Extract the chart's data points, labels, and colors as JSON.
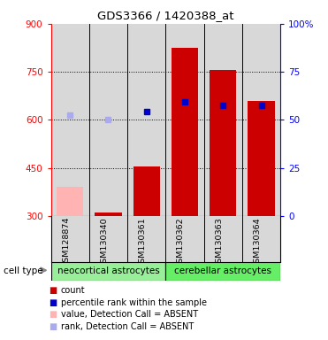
{
  "title": "GDS3366 / 1420388_at",
  "samples": [
    "GSM128874",
    "GSM130340",
    "GSM130361",
    "GSM130362",
    "GSM130363",
    "GSM130364"
  ],
  "bar_values": [
    390,
    310,
    455,
    825,
    755,
    660
  ],
  "bar_colors": [
    "#ffb3b3",
    "#cc0000",
    "#cc0000",
    "#cc0000",
    "#cc0000",
    "#cc0000"
  ],
  "dot_values": [
    615,
    600,
    625,
    655,
    645,
    645
  ],
  "dot_colors": [
    "#aaaaee",
    "#aaaaee",
    "#0000cc",
    "#0000cc",
    "#0000cc",
    "#0000cc"
  ],
  "ylim_left": [
    300,
    900
  ],
  "ylim_right": [
    0,
    100
  ],
  "yticks_left": [
    300,
    450,
    600,
    750,
    900
  ],
  "yticks_right": [
    0,
    25,
    50,
    75,
    100
  ],
  "ytick_labels_left": [
    "300",
    "450",
    "600",
    "750",
    "900"
  ],
  "ytick_labels_right": [
    "0",
    "25",
    "50",
    "75",
    "100%"
  ],
  "hgrid_ticks": [
    450,
    600,
    750
  ],
  "cell_type_groups": [
    {
      "label": "neocortical astrocytes",
      "color": "#99ee99",
      "start": 0,
      "end": 3
    },
    {
      "label": "cerebellar astrocytes",
      "color": "#66ee66",
      "start": 3,
      "end": 6
    }
  ],
  "cell_type_label": "cell type",
  "legend_items": [
    {
      "color": "#cc0000",
      "label": "count"
    },
    {
      "color": "#0000cc",
      "label": "percentile rank within the sample"
    },
    {
      "color": "#ffb3b3",
      "label": "value, Detection Call = ABSENT"
    },
    {
      "color": "#aaaaee",
      "label": "rank, Detection Call = ABSENT"
    }
  ],
  "bar_width": 0.7,
  "background_color": "#ffffff",
  "plot_bg": "#d8d8d8"
}
